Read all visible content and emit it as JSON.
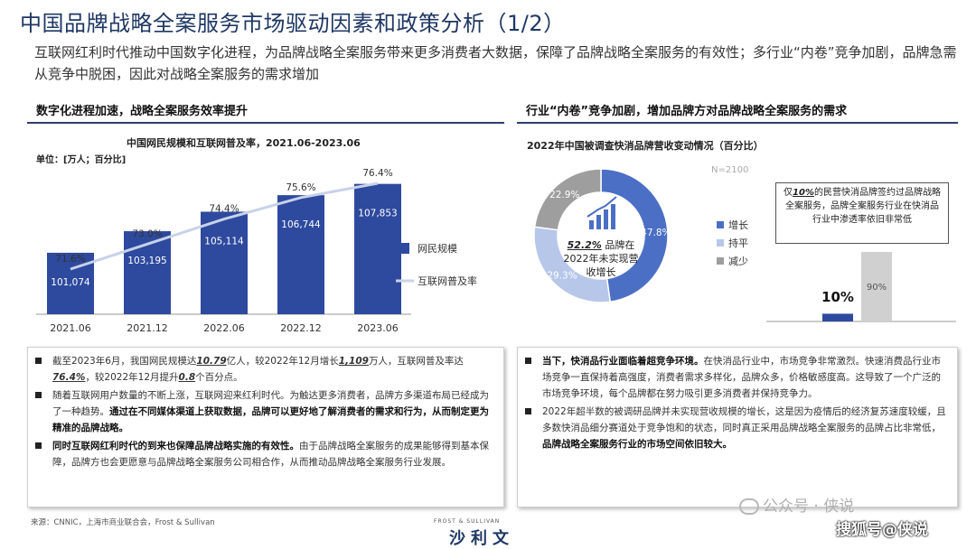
{
  "title": "中国品牌战略全案服务市场驱动因素和政策分析（1/2）",
  "intro": "互联网红利时代推动中国数字化进程，为品牌战略全案服务带来更多消费者大数据，保障了品牌战略全案服务的有效性；多行业“内卷”竞争加剧，品牌急需从竞争中脱困，因此对战略全案服务的需求增加",
  "left_section": {
    "heading": "数字化进程加速，战略全案服务效率提升",
    "chart_title": "中国网民规模和互联网普及率，2021.06-2023.06",
    "unit": "单位：[万人；百分比]",
    "bullets": [
      {
        "parts": [
          {
            "t": "截至2023年6月，我国网民规模达"
          },
          {
            "t": "10.79",
            "s": "num"
          },
          {
            "t": "亿人，较2022年12月增长"
          },
          {
            "t": "1,109",
            "s": "num"
          },
          {
            "t": "万人，互联网普及率达"
          },
          {
            "t": "76.4%",
            "s": "num"
          },
          {
            "t": "，较2022年12月提升"
          },
          {
            "t": "0.8",
            "s": "num"
          },
          {
            "t": "个百分点。"
          }
        ]
      },
      {
        "parts": [
          {
            "t": "随着互联网用户数量的不断上涨，互联网迎来红利时代。为触达更多消费者，品牌方多渠道布局已经成为了一种趋势。"
          },
          {
            "t": "通过在不同媒体渠道上获取数据，品牌可以更好地了解消费者的需求和行为，从而制定更为精准的品牌战略。",
            "s": "b"
          }
        ]
      },
      {
        "parts": [
          {
            "t": "同时互联网红利时代的到来也保障品牌战略实施的有效性。",
            "s": "b"
          },
          {
            "t": "由于品牌战略全案服务的成果能够得到基本保障，品牌方也会更愿意与品牌战略全案服务公司相合作，从而推动品牌战略全案服务行业发展。"
          }
        ]
      }
    ]
  },
  "right_section": {
    "heading": "行业“内卷”竞争加剧，增加品牌方对品牌战略全案服务的需求",
    "pie_title": "2022年中国被调查快消品牌营收变动情况（百分比）",
    "n_label": "N=2100",
    "center_pct": "52.2%",
    "center_text": "品牌在2022年未实现营收增长",
    "callout_prefix": "仅",
    "callout_pct": "10%",
    "callout_text": "的民营快消品牌签约过品牌战略全案服务，品牌全案服务行业在快消品行业中渗透率依旧非常低",
    "bullets": [
      {
        "parts": [
          {
            "t": "当下，快消品行业面临着超竞争环境。",
            "s": "b"
          },
          {
            "t": "在快消品行业中，市场竞争非常激烈。快速消费品行业市场竞争一直保持着高强度，消费者需求多样化，品牌众多，价格敏感度高。这导致了一个广泛的市场竞争环境，每个品牌都在努力吸引更多消费者并保持竞争力。"
          }
        ]
      },
      {
        "parts": [
          {
            "t": "2022年超半数的被调研品牌并未实现营收规模的增长，这是因为疫情后的经济复苏速度较缓，且多数快消品细分赛道处于竞争饱和的状态，同时真正采用品牌战略全案服务的品牌占比非常低，"
          },
          {
            "t": "品牌战略全案服务行业的市场空间依旧较大。",
            "s": "b"
          }
        ]
      }
    ]
  },
  "source": "来源：CNNIC，上海市商业联合会，Frost & Sullivan",
  "logo_small": "FROST & SULLIVAN",
  "logo_main": "沙利文",
  "watermark_1": "公众号 · 侠说",
  "watermark_2": "搜狐号@侠说",
  "colors": {
    "bar": "#2e4a9e",
    "line": "#c8d2e8",
    "pie_grow": "#4a6fc4",
    "pie_flat": "#b7c7ea",
    "pie_down": "#9e9e9e",
    "title": "#1f3864"
  },
  "chart_data": [
    {
      "type": "bar",
      "title": "中国网民规模和互联网普及率，2021.06-2023.06",
      "unit_label": "单位：[万人；百分比]",
      "categories": [
        "2021.06",
        "2021.12",
        "2022.06",
        "2022.12",
        "2023.06"
      ],
      "series": [
        {
          "name": "网民规模",
          "type": "bar",
          "values": [
            101074,
            103195,
            105114,
            106744,
            107853
          ],
          "labels": [
            "101,074",
            "103,195",
            "105,114",
            "106,744",
            "107,853"
          ]
        },
        {
          "name": "互联网普及率",
          "type": "line",
          "values": [
            71.6,
            73.0,
            74.4,
            75.6,
            76.4
          ],
          "labels": [
            "71.6%",
            "73.0%",
            "74.4%",
            "75.6%",
            "76.4%"
          ]
        }
      ]
    },
    {
      "type": "pie",
      "title": "2022年中国被调查快消品牌营收变动情况（百分比）",
      "categories": [
        "增长",
        "持平",
        "减少"
      ],
      "values": [
        47.8,
        29.3,
        22.9
      ],
      "labels": [
        "47.8%",
        "29.3%",
        "22.9%"
      ]
    },
    {
      "type": "bar",
      "categories": [
        "",
        ""
      ],
      "values": [
        10,
        90
      ],
      "labels": [
        "10%",
        "90%"
      ]
    }
  ]
}
